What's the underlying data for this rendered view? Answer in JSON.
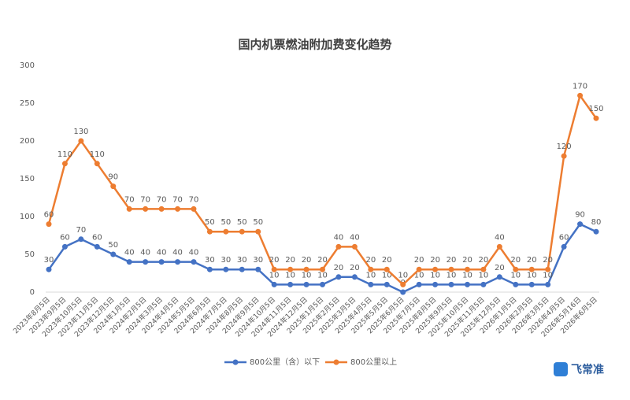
{
  "chart_data": {
    "type": "line",
    "stacked": true,
    "title": "国内机票燃油附加费变化趋势",
    "categories": [
      "2023年8月5日",
      "2023年9月5日",
      "2023年10月5日",
      "2023年11月5日",
      "2023年12月5日",
      "2024年1月5日",
      "2024年2月5日",
      "2024年3月5日",
      "2024年4月5日",
      "2024年5月5日",
      "2024年6月5日",
      "2024年7月5日",
      "2024年8月5日",
      "2024年9月5日",
      "2024年10月5日",
      "2024年11月5日",
      "2024年12月5日",
      "2025年1月5日",
      "2025年2月5日",
      "2025年3月5日",
      "2025年4月5日",
      "2025年5月5日",
      "2025年6月5日",
      "2025年7月5日",
      "2025年8月5日",
      "2025年9月5日",
      "2025年10月5日",
      "2025年11月5日",
      "2025年12月5日",
      "2026年1月5日",
      "2026年2月5日",
      "2026年3月5日",
      "2026年4月5日",
      "2026年5月16日",
      "2026年6月5日"
    ],
    "series": [
      {
        "name": "800公里（含）以下",
        "color": "#4472c4",
        "values": [
          30,
          60,
          70,
          60,
          50,
          40,
          40,
          40,
          40,
          40,
          30,
          30,
          30,
          30,
          10,
          10,
          10,
          10,
          20,
          20,
          10,
          10,
          0,
          10,
          10,
          10,
          10,
          10,
          20,
          10,
          10,
          10,
          60,
          90,
          80
        ]
      },
      {
        "name": "800公里以上",
        "color": "#ed7d31",
        "values": [
          60,
          110,
          130,
          110,
          90,
          70,
          70,
          70,
          70,
          70,
          50,
          50,
          50,
          50,
          20,
          20,
          20,
          20,
          40,
          40,
          20,
          20,
          10,
          20,
          20,
          20,
          20,
          20,
          40,
          20,
          20,
          20,
          120,
          170,
          150
        ]
      }
    ],
    "ylim": [
      0,
      300
    ],
    "yticks": [
      0,
      50,
      100,
      150,
      200,
      250,
      300
    ],
    "grid": false,
    "legend": "bottom",
    "logo": "飞常准"
  }
}
